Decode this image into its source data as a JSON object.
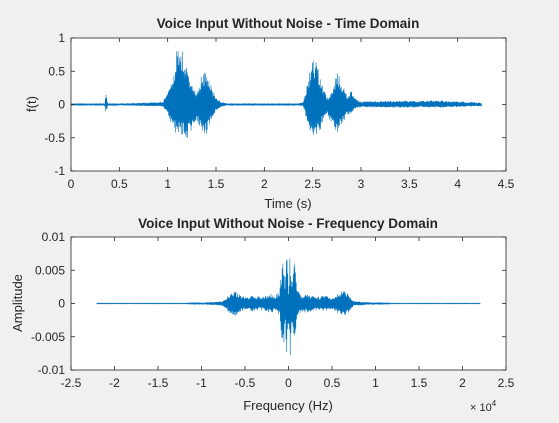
{
  "chart_data": [
    {
      "type": "line",
      "title": "Voice Input Without Noise - Time Domain",
      "xlabel": "Time (s)",
      "ylabel": "f(t)",
      "xlim": [
        0,
        4.5
      ],
      "ylim": [
        -1,
        1
      ],
      "xticks": [
        "0",
        "0.5",
        "1",
        "1.5",
        "2",
        "2.5",
        "3",
        "3.5",
        "4",
        "4.5"
      ],
      "yticks": [
        "-1",
        "-0.5",
        "0",
        "0.5",
        "1"
      ],
      "grid": false,
      "color": "#0072bd",
      "envelope": {
        "description": "audio waveform amplitude envelope",
        "x": [
          0,
          0.35,
          0.36,
          0.38,
          0.4,
          0.95,
          1.0,
          1.05,
          1.1,
          1.15,
          1.2,
          1.25,
          1.3,
          1.35,
          1.4,
          1.45,
          1.5,
          1.55,
          1.6,
          1.65,
          2.3,
          2.4,
          2.45,
          2.5,
          2.55,
          2.6,
          2.65,
          2.7,
          2.75,
          2.8,
          2.85,
          2.9,
          2.95,
          3.0,
          3.5,
          3.6,
          3.7,
          4.0,
          4.1,
          4.25
        ],
        "upper": [
          0.01,
          0.01,
          0.18,
          0.02,
          0.01,
          0.04,
          0.2,
          0.45,
          0.9,
          0.85,
          0.55,
          0.35,
          0.2,
          0.45,
          0.5,
          0.3,
          0.1,
          0.05,
          0.02,
          0.01,
          0.01,
          0.03,
          0.35,
          0.8,
          0.6,
          0.3,
          0.1,
          0.2,
          0.5,
          0.35,
          0.15,
          0.2,
          0.08,
          0.05,
          0.06,
          0.05,
          0.07,
          0.05,
          0.04,
          0.03
        ],
        "lower": [
          -0.01,
          -0.01,
          -0.15,
          -0.02,
          -0.01,
          -0.03,
          -0.15,
          -0.35,
          -0.5,
          -0.45,
          -0.55,
          -0.4,
          -0.25,
          -0.4,
          -0.45,
          -0.25,
          -0.1,
          -0.05,
          -0.02,
          -0.01,
          -0.01,
          -0.02,
          -0.3,
          -0.55,
          -0.5,
          -0.3,
          -0.15,
          -0.3,
          -0.45,
          -0.35,
          -0.15,
          -0.15,
          -0.06,
          -0.04,
          -0.05,
          -0.04,
          -0.05,
          -0.04,
          -0.03,
          -0.03
        ]
      }
    },
    {
      "type": "line",
      "title": "Voice Input Without Noise - Frequency Domain",
      "xlabel": "Frequency (Hz)",
      "ylabel": "Amplitude",
      "xlim": [
        -25000,
        25000
      ],
      "ylim": [
        -0.01,
        0.01
      ],
      "xticks": [
        "-2.5",
        "-2",
        "-1.5",
        "-1",
        "-0.5",
        "0",
        "0.5",
        "1",
        "1.5",
        "2",
        "2.5"
      ],
      "yticks": [
        "-0.01",
        "-0.005",
        "0",
        "0.005",
        "0.01"
      ],
      "x_exponent_base": "× 10",
      "x_exponent_power": "4",
      "grid": false,
      "color": "#0072bd",
      "envelope": {
        "description": "spectrum amplitude envelope",
        "x": [
          -22050,
          -12000,
          -11000,
          -9000,
          -7500,
          -6800,
          -6200,
          -5800,
          -5000,
          -4000,
          -3000,
          -2000,
          -1500,
          -1000,
          -600,
          -400,
          -200,
          0,
          200,
          400,
          600,
          1000,
          1500,
          2000,
          3000,
          4000,
          5000,
          5800,
          6200,
          6800,
          7500,
          9000,
          11000,
          12000,
          22050
        ],
        "upper": [
          5e-05,
          5e-05,
          0.0001,
          0.0002,
          0.0004,
          0.0015,
          0.002,
          0.0015,
          0.001,
          0.0012,
          0.001,
          0.0015,
          0.0012,
          0.002,
          0.008,
          0.003,
          0.0085,
          0.002,
          0.0085,
          0.003,
          0.008,
          0.002,
          0.0012,
          0.0015,
          0.001,
          0.0012,
          0.001,
          0.0015,
          0.002,
          0.0015,
          0.0004,
          0.0002,
          0.0001,
          5e-05,
          5e-05
        ],
        "lower": [
          -5e-05,
          -5e-05,
          -0.0001,
          -0.0002,
          -0.0004,
          -0.0015,
          -0.002,
          -0.0015,
          -0.001,
          -0.0012,
          -0.001,
          -0.0015,
          -0.0012,
          -0.002,
          -0.0075,
          -0.003,
          -0.008,
          -0.002,
          -0.008,
          -0.003,
          -0.0075,
          -0.002,
          -0.0012,
          -0.0015,
          -0.001,
          -0.0012,
          -0.001,
          -0.0015,
          -0.002,
          -0.0015,
          -0.0004,
          -0.0002,
          -0.0001,
          -5e-05,
          -5e-05
        ]
      }
    }
  ]
}
